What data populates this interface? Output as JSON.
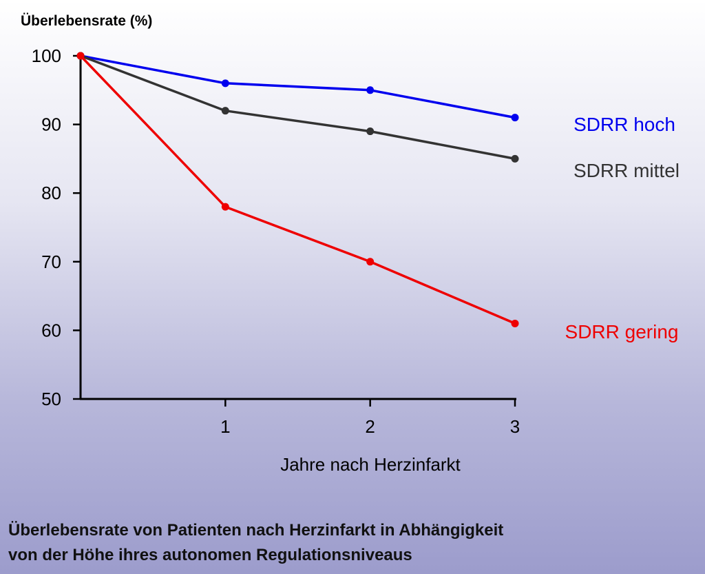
{
  "chart_data": {
    "type": "line",
    "ylabel": "Überlebensrate (%)",
    "xlabel": "Jahre nach Herzinfarkt",
    "x": [
      0,
      1,
      2,
      3
    ],
    "x_tick_labels": [
      "1",
      "2",
      "3"
    ],
    "x_tick_values": [
      1,
      2,
      3
    ],
    "xlim": [
      0,
      3
    ],
    "ylim": [
      50,
      100
    ],
    "y_ticks": [
      50,
      60,
      70,
      80,
      90,
      100
    ],
    "grid": false,
    "legend": "right",
    "series": [
      {
        "name": "SDRR hoch",
        "color": "#0000ee",
        "values": [
          100,
          96,
          95,
          91
        ]
      },
      {
        "name": "SDRR mittel",
        "color": "#333333",
        "values": [
          100,
          92,
          89,
          85
        ]
      },
      {
        "name": "SDRR gering",
        "color": "#ee0000",
        "values": [
          100,
          78,
          70,
          61
        ]
      }
    ]
  },
  "caption": {
    "line1": "Überlebensrate von Patienten nach Herzinfarkt in Abhängigkeit",
    "line2": "von der Höhe ihres autonomen Regulationsniveaus"
  }
}
